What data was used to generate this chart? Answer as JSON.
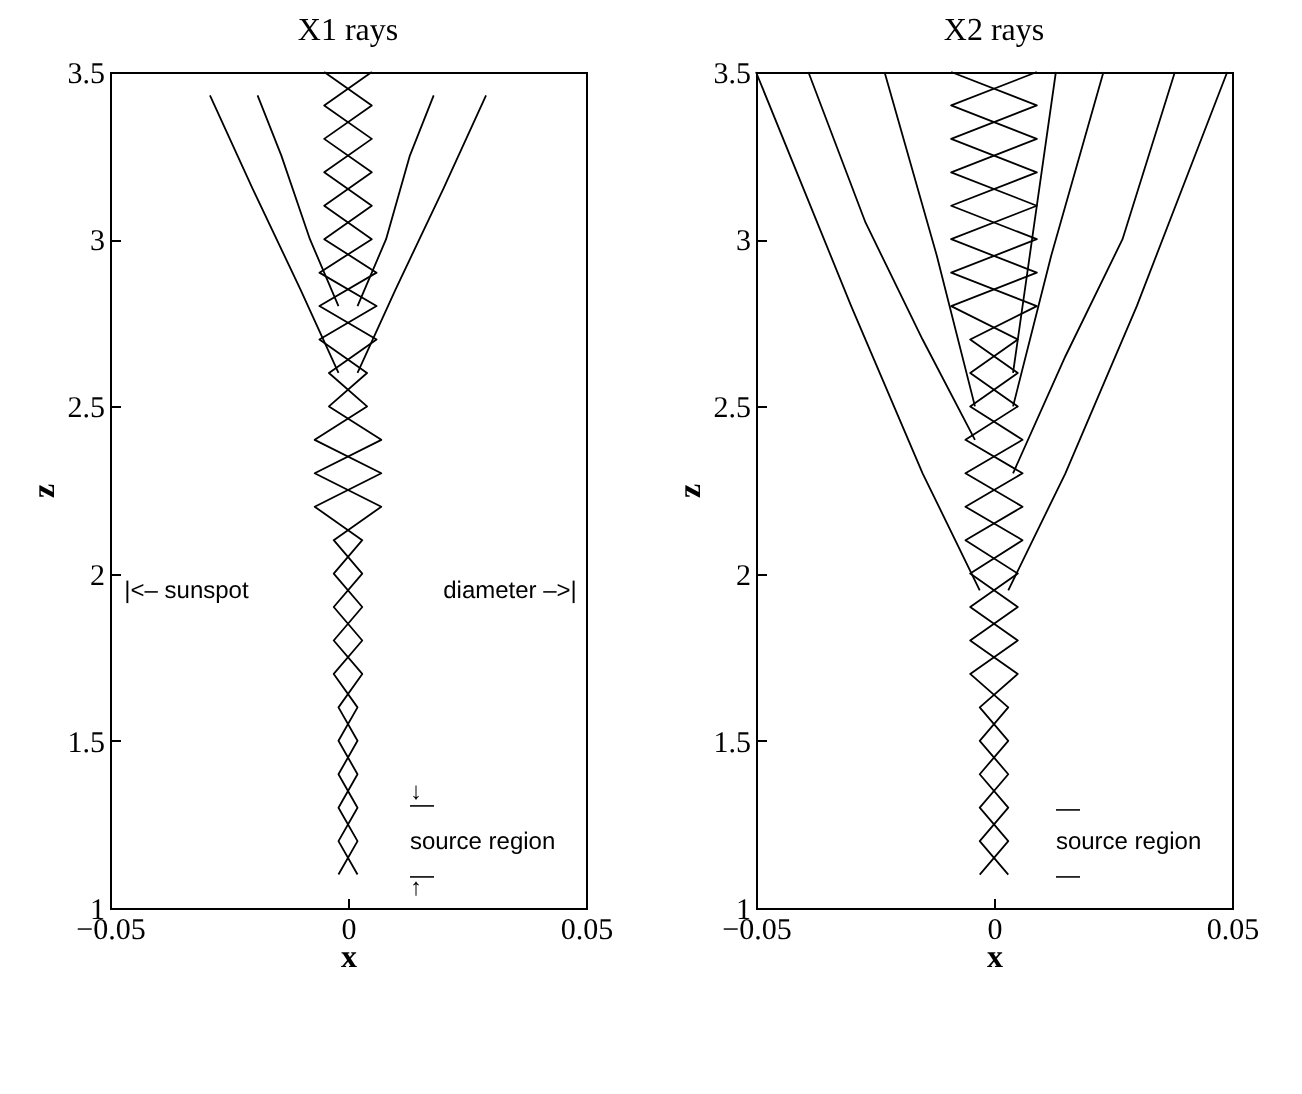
{
  "chart_data": [
    {
      "type": "line",
      "title": "X1 rays",
      "xlabel": "x",
      "ylabel": "z",
      "xlim": [
        -0.05,
        0.05
      ],
      "xticks": [
        -0.05,
        0,
        0.05
      ],
      "ylim": [
        1,
        3.5
      ],
      "yticks": [
        1,
        1.5,
        2,
        2.5,
        3,
        3.5
      ],
      "grid": false,
      "legend": false,
      "series": [
        {
          "color": "#000000",
          "x": [
            -0.002,
            -0.01,
            -0.02,
            -0.029
          ],
          "values": [
            2.6,
            2.85,
            3.15,
            3.43
          ]
        },
        {
          "color": "#000000",
          "x": [
            -0.002,
            -0.008,
            -0.014,
            -0.019
          ],
          "values": [
            2.8,
            3.0,
            3.25,
            3.43
          ]
        },
        {
          "color": "#000000",
          "x": [
            0.002,
            0.008,
            0.013,
            0.018
          ],
          "values": [
            2.8,
            3.0,
            3.25,
            3.43
          ]
        },
        {
          "color": "#000000",
          "x": [
            0.002,
            0.01,
            0.02,
            0.029
          ],
          "values": [
            2.6,
            2.85,
            3.15,
            3.43
          ]
        },
        {
          "color": "#000000",
          "x": [
            0.002,
            -0.002,
            0.002,
            -0.002,
            0.002,
            -0.002,
            0.003,
            -0.003,
            0.003,
            -0.003,
            0.003,
            -0.007,
            0.007,
            -0.007,
            0.004,
            -0.004,
            0.006,
            -0.006,
            0.006,
            -0.005,
            0.005,
            -0.005,
            0.005,
            -0.005,
            0.005
          ],
          "values": [
            1.1,
            1.2,
            1.3,
            1.4,
            1.5,
            1.6,
            1.7,
            1.8,
            1.9,
            2.0,
            2.1,
            2.2,
            2.3,
            2.4,
            2.5,
            2.6,
            2.7,
            2.8,
            2.9,
            3.0,
            3.1,
            3.2,
            3.3,
            3.4,
            3.5
          ]
        },
        {
          "color": "#000000",
          "x": [
            -0.002,
            0.002,
            -0.002,
            0.002,
            -0.002,
            0.002,
            -0.003,
            0.003,
            -0.003,
            0.003,
            -0.003,
            0.007,
            -0.007,
            0.007,
            -0.004,
            0.004,
            -0.006,
            0.006,
            -0.006,
            0.005,
            -0.005,
            0.005,
            -0.005,
            0.005,
            -0.005
          ],
          "values": [
            1.1,
            1.2,
            1.3,
            1.4,
            1.5,
            1.6,
            1.7,
            1.8,
            1.9,
            2.0,
            2.1,
            2.2,
            2.3,
            2.4,
            2.5,
            2.6,
            2.7,
            2.8,
            2.9,
            3.0,
            3.1,
            3.2,
            3.3,
            3.4,
            3.5
          ]
        }
      ],
      "annotations": [
        "|<– sunspot",
        "diameter –>|",
        "↓",
        "—",
        "source region",
        "—",
        "↑"
      ]
    },
    {
      "type": "line",
      "title": "X2 rays",
      "xlabel": "x",
      "ylabel": "z",
      "xlim": [
        -0.05,
        0.05
      ],
      "xticks": [
        -0.05,
        0,
        0.05
      ],
      "ylim": [
        1,
        3.5
      ],
      "yticks": [
        1,
        1.5,
        2,
        2.5,
        3,
        3.5
      ],
      "grid": false,
      "legend": false,
      "series": [
        {
          "color": "#000000",
          "x": [
            -0.003,
            -0.015,
            -0.03,
            -0.05
          ],
          "values": [
            1.95,
            2.3,
            2.8,
            3.5
          ]
        },
        {
          "color": "#000000",
          "x": [
            -0.004,
            -0.015,
            -0.027,
            -0.039
          ],
          "values": [
            2.4,
            2.7,
            3.05,
            3.5
          ]
        },
        {
          "color": "#000000",
          "x": [
            -0.004,
            -0.012,
            -0.023
          ],
          "values": [
            2.5,
            2.95,
            3.5
          ]
        },
        {
          "color": "#000000",
          "x": [
            0.004,
            0.008,
            0.013
          ],
          "values": [
            2.6,
            3.0,
            3.5
          ]
        },
        {
          "color": "#000000",
          "x": [
            0.004,
            0.012,
            0.023
          ],
          "values": [
            2.5,
            2.95,
            3.5
          ]
        },
        {
          "color": "#000000",
          "x": [
            0.004,
            0.015,
            0.027,
            0.038
          ],
          "values": [
            2.3,
            2.65,
            3.0,
            3.5
          ]
        },
        {
          "color": "#000000",
          "x": [
            0.003,
            0.015,
            0.03,
            0.049
          ],
          "values": [
            1.95,
            2.3,
            2.8,
            3.5
          ]
        },
        {
          "color": "#000000",
          "x": [
            0.003,
            -0.003,
            0.003,
            -0.003,
            0.003,
            -0.003,
            0.005,
            -0.005,
            0.005,
            -0.005,
            0.006,
            -0.006,
            0.006,
            -0.006,
            0.005,
            -0.005,
            0.005,
            -0.009,
            0.009,
            -0.009,
            0.009,
            -0.009,
            0.009,
            -0.009,
            0.009
          ],
          "values": [
            1.1,
            1.2,
            1.3,
            1.4,
            1.5,
            1.6,
            1.7,
            1.8,
            1.9,
            2.0,
            2.1,
            2.2,
            2.3,
            2.4,
            2.5,
            2.6,
            2.7,
            2.8,
            2.9,
            3.0,
            3.1,
            3.2,
            3.3,
            3.4,
            3.5
          ]
        },
        {
          "color": "#000000",
          "x": [
            -0.003,
            0.003,
            -0.003,
            0.003,
            -0.003,
            0.003,
            -0.005,
            0.005,
            -0.005,
            0.005,
            -0.006,
            0.006,
            -0.006,
            0.006,
            -0.005,
            0.005,
            -0.005,
            0.009,
            -0.009,
            0.009,
            -0.009,
            0.009,
            -0.009,
            0.009,
            -0.009
          ],
          "values": [
            1.1,
            1.2,
            1.3,
            1.4,
            1.5,
            1.6,
            1.7,
            1.8,
            1.9,
            2.0,
            2.1,
            2.2,
            2.3,
            2.4,
            2.5,
            2.6,
            2.7,
            2.8,
            2.9,
            3.0,
            3.1,
            3.2,
            3.3,
            3.4,
            3.5
          ]
        }
      ],
      "annotations": [
        "—",
        "source region",
        "—"
      ]
    }
  ]
}
